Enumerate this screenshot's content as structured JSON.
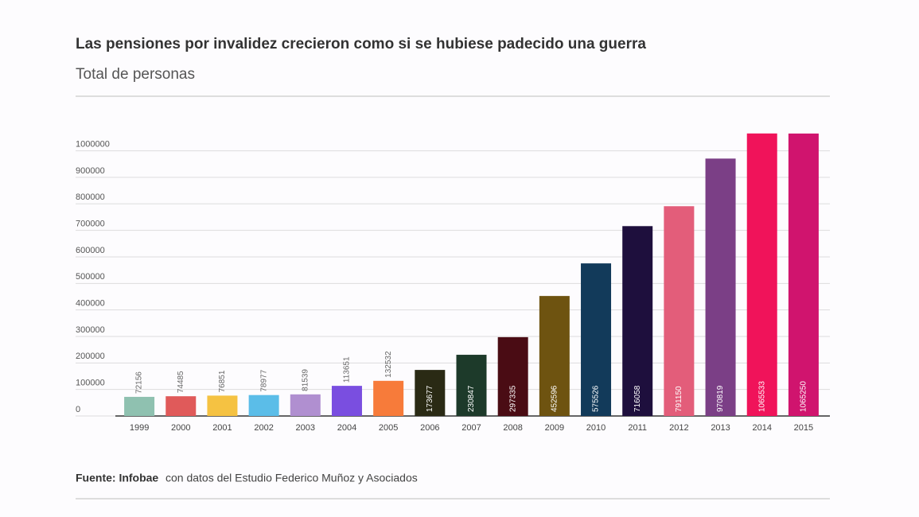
{
  "chart_data": {
    "type": "bar",
    "title": "Las pensiones por invalidez crecieron como si se hubiese padecido una guerra",
    "subtitle": "Total de personas",
    "source_label": "Fuente: Infobae",
    "source_text": "con datos del Estudio Federico Muñoz y Asociados",
    "categories": [
      "1999",
      "2000",
      "2001",
      "2002",
      "2003",
      "2004",
      "2005",
      "2006",
      "2007",
      "2008",
      "2009",
      "2010",
      "2011",
      "2012",
      "2013",
      "2014",
      "2015"
    ],
    "values": [
      72156,
      74485,
      76851,
      78977,
      81539,
      113651,
      132532,
      173677,
      230847,
      297335,
      452596,
      575526,
      716058,
      791150,
      970819,
      1065533,
      1065250
    ],
    "colors": [
      "#8fc1b0",
      "#e05a5a",
      "#f5c242",
      "#5bbde8",
      "#b08fd0",
      "#7a4ee0",
      "#f77b3a",
      "#2a2a14",
      "#1d3a2a",
      "#4a0c14",
      "#6e5310",
      "#123a5a",
      "#1e0f3d",
      "#e35d7a",
      "#7b3f86",
      "#f0135a",
      "#d0146e"
    ],
    "ylim": [
      0,
      1100000
    ],
    "yticks": [
      0,
      100000,
      200000,
      300000,
      400000,
      500000,
      600000,
      700000,
      800000,
      900000,
      1000000
    ],
    "grid": true
  }
}
